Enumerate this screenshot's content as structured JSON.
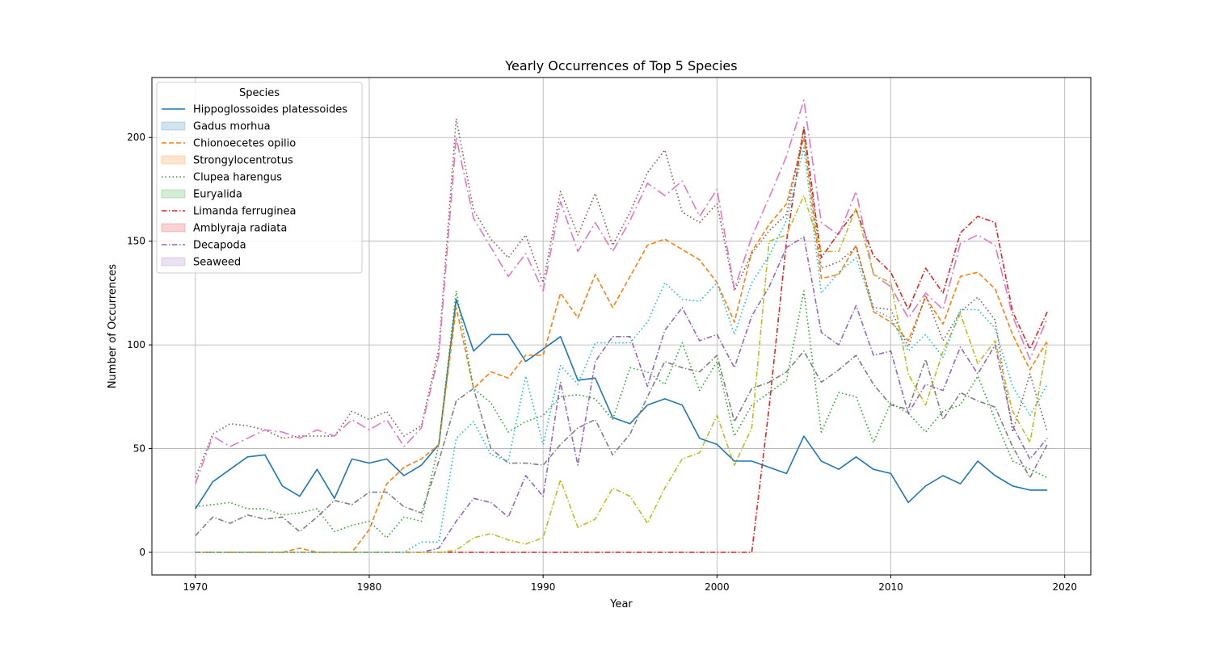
{
  "chart_data": {
    "type": "line",
    "title": "Yearly Occurrences of Top 5 Species",
    "xlabel": "Year",
    "ylabel": "Number of Occurrences",
    "xlim": [
      1967.5,
      2021.5
    ],
    "ylim": [
      -10.9,
      228.9
    ],
    "xticks": [
      1970,
      1980,
      1990,
      2000,
      2010,
      2020
    ],
    "yticks": [
      0,
      50,
      100,
      150,
      200
    ],
    "grid": true,
    "legend": {
      "title": "Species",
      "placement": "upper-left",
      "entries": [
        {
          "label": "Hippoglossoides platessoides",
          "kind": "line",
          "color": "#1f77b4",
          "dash": "solid"
        },
        {
          "label": "Gadus morhua",
          "kind": "patch",
          "color": "#1f77b4"
        },
        {
          "label": "Chionoecetes opilio",
          "kind": "line",
          "color": "#ff7f0e",
          "dash": "dashed"
        },
        {
          "label": "Strongylocentrotus",
          "kind": "patch",
          "color": "#ff7f0e"
        },
        {
          "label": "Clupea harengus",
          "kind": "line",
          "color": "#2ca02c",
          "dash": "dotted"
        },
        {
          "label": "Euryalida",
          "kind": "patch",
          "color": "#2ca02c"
        },
        {
          "label": "Limanda ferruginea",
          "kind": "line",
          "color": "#d62728",
          "dash": "dashdot"
        },
        {
          "label": "Amblyraja radiata",
          "kind": "patch",
          "color": "#d62728"
        },
        {
          "label": "Decapoda",
          "kind": "line",
          "color": "#9467bd",
          "dash": "dashdot"
        },
        {
          "label": "Seaweed",
          "kind": "patch",
          "color": "#9467bd"
        }
      ]
    },
    "x": [
      1970,
      1971,
      1972,
      1973,
      1974,
      1975,
      1976,
      1977,
      1978,
      1979,
      1980,
      1981,
      1982,
      1983,
      1984,
      1985,
      1986,
      1987,
      1988,
      1989,
      1990,
      1991,
      1992,
      1993,
      1994,
      1995,
      1996,
      1997,
      1998,
      1999,
      2000,
      2001,
      2002,
      2003,
      2004,
      2005,
      2006,
      2007,
      2008,
      2009,
      2010,
      2011,
      2012,
      2013,
      2014,
      2015,
      2016,
      2017,
      2018,
      2019
    ],
    "series": [
      {
        "color": "#1f77b4",
        "dash": "solid",
        "values": [
          21,
          34,
          40,
          46,
          47,
          32,
          27,
          40,
          26,
          45,
          43,
          45,
          37,
          42,
          52,
          122,
          97,
          105,
          105,
          92,
          98,
          104,
          83,
          84,
          65,
          62,
          71,
          74,
          71,
          55,
          52,
          44,
          44,
          41,
          38,
          56,
          44,
          40,
          46,
          40,
          38,
          24,
          32,
          37,
          33,
          44,
          37,
          32,
          30,
          30
        ]
      },
      {
        "color": "#ff7f0e",
        "dash": "dashed",
        "values": [
          0,
          0,
          0,
          0,
          0,
          0,
          2,
          0,
          0,
          0,
          11,
          33,
          41,
          45,
          52,
          118,
          79,
          87,
          84,
          95,
          95,
          125,
          113,
          134,
          118,
          133,
          148,
          151,
          146,
          141,
          130,
          111,
          145,
          158,
          168,
          200,
          132,
          134,
          148,
          116,
          111,
          102,
          123,
          110,
          133,
          135,
          127,
          105,
          88,
          102
        ]
      },
      {
        "color": "#2ca02c",
        "dash": "dotted",
        "values": [
          22,
          23,
          24,
          21,
          21,
          18,
          19,
          21,
          10,
          13,
          15,
          7,
          17,
          15,
          52,
          126,
          79,
          72,
          58,
          63,
          66,
          75,
          76,
          74,
          64,
          89,
          87,
          81,
          101,
          78,
          92,
          56,
          71,
          77,
          83,
          126,
          58,
          77,
          75,
          53,
          72,
          67,
          58,
          68,
          71,
          85,
          64,
          44,
          40,
          36
        ]
      },
      {
        "color": "#d62728",
        "dash": "dashdot",
        "values": [
          0,
          0,
          0,
          0,
          0,
          0,
          0,
          0,
          0,
          0,
          0,
          0,
          0,
          0,
          0,
          0,
          0,
          0,
          0,
          0,
          0,
          0,
          0,
          0,
          0,
          0,
          0,
          0,
          0,
          0,
          0,
          0,
          0,
          70,
          150,
          205,
          142,
          154,
          165,
          143,
          135,
          117,
          137,
          125,
          154,
          162,
          159,
          116,
          98,
          116
        ]
      },
      {
        "color": "#9467bd",
        "dash": "dashdot",
        "values": [
          0,
          0,
          0,
          0,
          0,
          0,
          0,
          0,
          0,
          0,
          0,
          0,
          0,
          0,
          2,
          15,
          26,
          24,
          17,
          37,
          27,
          82,
          42,
          92,
          104,
          104,
          80,
          107,
          118,
          102,
          105,
          89,
          114,
          128,
          147,
          152,
          106,
          100,
          119,
          95,
          97,
          67,
          81,
          78,
          99,
          86,
          100,
          61,
          45,
          55
        ]
      },
      {
        "color": "#8c564b",
        "dash": "dotted",
        "values": [
          36,
          57,
          62,
          61,
          59,
          55,
          56,
          56,
          56,
          68,
          64,
          68,
          56,
          61,
          98,
          209,
          165,
          151,
          142,
          153,
          130,
          174,
          153,
          173,
          148,
          164,
          183,
          194,
          164,
          159,
          168,
          126,
          144,
          155,
          163,
          204,
          137,
          140,
          147,
          118,
          117,
          99,
          124,
          102,
          116,
          123,
          112,
          58,
          86,
          58
        ]
      },
      {
        "color": "#e377c2",
        "dash": "dashlong",
        "values": [
          33,
          56,
          51,
          55,
          59,
          58,
          55,
          59,
          56,
          64,
          59,
          64,
          51,
          60,
          95,
          200,
          161,
          147,
          133,
          144,
          126,
          169,
          145,
          159,
          145,
          160,
          178,
          172,
          179,
          162,
          175,
          127,
          152,
          171,
          191,
          218,
          159,
          153,
          174,
          134,
          128,
          113,
          125,
          117,
          149,
          153,
          148,
          114,
          93,
          113
        ]
      },
      {
        "color": "#7f7f7f",
        "dash": "dashdot",
        "values": [
          8,
          17,
          14,
          18,
          16,
          17,
          10,
          17,
          25,
          23,
          29,
          29,
          22,
          19,
          44,
          73,
          79,
          50,
          43,
          43,
          42,
          52,
          60,
          64,
          47,
          57,
          75,
          92,
          89,
          87,
          95,
          63,
          79,
          82,
          87,
          97,
          82,
          88,
          95,
          81,
          71,
          69,
          93,
          64,
          77,
          73,
          70,
          51,
          36,
          52
        ]
      },
      {
        "color": "#bcbd22",
        "dash": "dashdot",
        "values": [
          0,
          0,
          0,
          0,
          0,
          0,
          0,
          0,
          0,
          0,
          0,
          0,
          0,
          0,
          0,
          1,
          7,
          9,
          6,
          4,
          7,
          35,
          12,
          16,
          31,
          27,
          14,
          31,
          45,
          48,
          66,
          42,
          60,
          150,
          153,
          172,
          145,
          145,
          166,
          134,
          130,
          86,
          71,
          97,
          115,
          91,
          102,
          68,
          53,
          101
        ]
      },
      {
        "color": "#17becf",
        "dash": "dotted",
        "values": [
          0,
          0,
          0,
          0,
          0,
          0,
          0,
          0,
          0,
          0,
          0,
          0,
          0,
          5,
          5,
          55,
          63,
          47,
          44,
          85,
          52,
          90,
          81,
          101,
          101,
          101,
          111,
          130,
          122,
          121,
          130,
          105,
          130,
          143,
          160,
          195,
          125,
          135,
          142,
          117,
          113,
          97,
          105,
          94,
          117,
          117,
          108,
          80,
          66,
          81
        ]
      }
    ]
  }
}
